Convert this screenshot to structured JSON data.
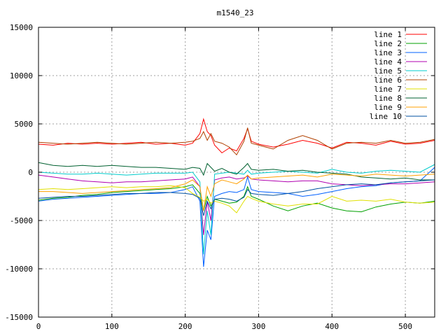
{
  "chart_data": {
    "type": "line",
    "title": "m1540_23",
    "xlabel": "",
    "ylabel": "",
    "xlim": [
      0,
      540
    ],
    "ylim": [
      -15000,
      15000
    ],
    "x_ticks": [
      0,
      100,
      200,
      300,
      400,
      500
    ],
    "y_ticks": [
      -15000,
      -10000,
      -5000,
      0,
      5000,
      10000,
      15000
    ],
    "grid": true,
    "legend_position": "top-right",
    "x": [
      0,
      20,
      40,
      60,
      80,
      100,
      120,
      140,
      160,
      180,
      200,
      210,
      220,
      225,
      230,
      235,
      240,
      250,
      260,
      270,
      280,
      285,
      290,
      300,
      320,
      340,
      360,
      380,
      400,
      420,
      440,
      460,
      480,
      500,
      520,
      540
    ],
    "series": [
      {
        "name": "line 1",
        "color": "#ff0000",
        "values": [
          2900,
          2800,
          3000,
          2900,
          3000,
          2900,
          3000,
          3100,
          2900,
          3000,
          2800,
          3000,
          4000,
          5500,
          4200,
          3800,
          2800,
          2000,
          2500,
          2200,
          3500,
          4500,
          3200,
          2900,
          2600,
          2900,
          3300,
          3000,
          2500,
          3100,
          3000,
          2800,
          3200,
          2900,
          3000,
          3300
        ]
      },
      {
        "name": "line 2",
        "color": "#00a000",
        "values": [
          -2900,
          -2700,
          -2600,
          -2400,
          -2300,
          -2100,
          -2000,
          -1900,
          -1800,
          -1700,
          -1500,
          -1300,
          -2200,
          -4000,
          -2500,
          -3500,
          -2800,
          -3000,
          -3200,
          -3100,
          -2500,
          -1500,
          -2500,
          -2800,
          -3500,
          -4000,
          -3500,
          -3200,
          -3700,
          -4000,
          -4100,
          -3600,
          -3300,
          -3100,
          -3200,
          -3000
        ]
      },
      {
        "name": "line 3",
        "color": "#0060ff",
        "values": [
          -3000,
          -2800,
          -2700,
          -2600,
          -2500,
          -2400,
          -2300,
          -2200,
          -2200,
          -2100,
          -1800,
          -1500,
          -3000,
          -9800,
          -6000,
          -7000,
          -2500,
          -2200,
          -2000,
          -2100,
          -1800,
          -500,
          -1800,
          -2000,
          -2100,
          -2200,
          -2500,
          -2300,
          -2000,
          -1700,
          -1500,
          -1400,
          -1100,
          -1000,
          -900,
          500
        ]
      },
      {
        "name": "line 4",
        "color": "#b000b0",
        "values": [
          -300,
          -500,
          -700,
          -900,
          -1000,
          -1100,
          -1000,
          -1000,
          -900,
          -800,
          -700,
          -500,
          -1500,
          -6500,
          -3000,
          -5000,
          -800,
          -600,
          -500,
          -700,
          -600,
          -400,
          -700,
          -800,
          -900,
          -1000,
          -900,
          -900,
          -1200,
          -1300,
          -1400,
          -1300,
          -1200,
          -1200,
          -1100,
          -1000
        ]
      },
      {
        "name": "line 5",
        "color": "#00cccc",
        "values": [
          0,
          -100,
          -200,
          -200,
          -100,
          -200,
          -300,
          -200,
          -100,
          -100,
          -100,
          0,
          -1000,
          -8500,
          -4000,
          -6500,
          -200,
          -100,
          0,
          -100,
          -200,
          200,
          -200,
          -100,
          0,
          100,
          0,
          -100,
          300,
          0,
          -100,
          100,
          200,
          100,
          0,
          800
        ]
      },
      {
        "name": "line 6",
        "color": "#b04000",
        "values": [
          3100,
          3000,
          2900,
          3000,
          3100,
          3000,
          2900,
          3000,
          3100,
          3000,
          3100,
          3200,
          3500,
          4200,
          3300,
          4000,
          3200,
          3000,
          2600,
          1800,
          3200,
          4600,
          3000,
          2800,
          2400,
          3300,
          3800,
          3300,
          2400,
          3000,
          3100,
          3000,
          3300,
          3000,
          3100,
          3400
        ]
      },
      {
        "name": "line 7",
        "color": "#e0e000",
        "values": [
          -1800,
          -1700,
          -1800,
          -1700,
          -1600,
          -1500,
          -1600,
          -1500,
          -1500,
          -1400,
          -1600,
          -2200,
          -2600,
          -3000,
          -2800,
          -3200,
          -3000,
          -3200,
          -3500,
          -4200,
          -3000,
          -2500,
          -2700,
          -3000,
          -3300,
          -3500,
          -3300,
          -3300,
          -2500,
          -3000,
          -2900,
          -3000,
          -2800,
          -3100,
          -3200,
          -3100
        ]
      },
      {
        "name": "line 8",
        "color": "#006030",
        "values": [
          1000,
          700,
          600,
          700,
          600,
          700,
          600,
          500,
          500,
          400,
          300,
          500,
          400,
          -300,
          900,
          500,
          100,
          400,
          0,
          -200,
          500,
          900,
          300,
          200,
          300,
          100,
          200,
          0,
          -100,
          -200,
          -500,
          -600,
          -700,
          -600,
          -800,
          -800
        ]
      },
      {
        "name": "line 9",
        "color": "#ffa000",
        "values": [
          -2000,
          -2000,
          -2100,
          -2200,
          -2100,
          -2000,
          -1900,
          -1800,
          -1700,
          -1600,
          -1200,
          -800,
          -1500,
          -4000,
          -1500,
          -2500,
          -1200,
          -800,
          -1000,
          -1200,
          -700,
          -300,
          -700,
          -600,
          -500,
          -400,
          -300,
          -500,
          -200,
          -300,
          -400,
          -200,
          -300,
          -400,
          -300,
          -200
        ]
      },
      {
        "name": "line 10",
        "color": "#0050a0",
        "values": [
          -2700,
          -2600,
          -2500,
          -2500,
          -2400,
          -2300,
          -2200,
          -2200,
          -2100,
          -2100,
          -2200,
          -2300,
          -2700,
          -4500,
          -3000,
          -3800,
          -2800,
          -2700,
          -2800,
          -3000,
          -2600,
          -1800,
          -2200,
          -2300,
          -2400,
          -2200,
          -2000,
          -1700,
          -1500,
          -1300,
          -1200,
          -1300,
          -1100,
          -1000,
          -900,
          -800
        ]
      }
    ]
  }
}
